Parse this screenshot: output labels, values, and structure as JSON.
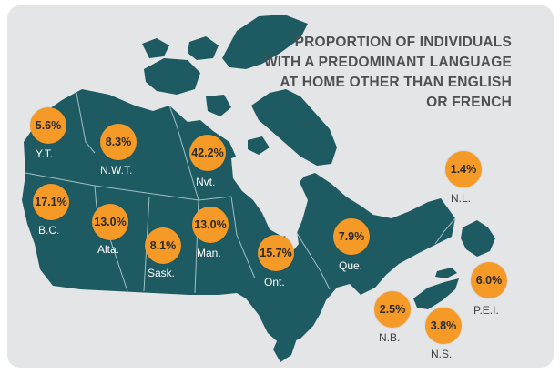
{
  "title_lines": [
    "PROPORTION OF INDIVIDUALS",
    "WITH A PREDOMINANT LANGUAGE",
    "AT HOME OTHER THAN ENGLISH",
    "OR FRENCH"
  ],
  "colors": {
    "land": "#1e5a62",
    "borders": "#9fc0c4",
    "background": "#e4e5e6",
    "bubble": "#f59a27",
    "title": "#4d4f52"
  },
  "provinces": [
    {
      "id": "yt",
      "label": "Y.T.",
      "value": "5.6%"
    },
    {
      "id": "nwt",
      "label": "N.W.T.",
      "value": "8.3%"
    },
    {
      "id": "nvt",
      "label": "Nvt.",
      "value": "42.2%"
    },
    {
      "id": "bc",
      "label": "B.C.",
      "value": "17.1%"
    },
    {
      "id": "alta",
      "label": "Alta.",
      "value": "13.0%"
    },
    {
      "id": "sask",
      "label": "Sask.",
      "value": "8.1%"
    },
    {
      "id": "man",
      "label": "Man.",
      "value": "13.0%"
    },
    {
      "id": "ont",
      "label": "Ont.",
      "value": "15.7%"
    },
    {
      "id": "que",
      "label": "Que.",
      "value": "7.9%"
    },
    {
      "id": "nl",
      "label": "N.L.",
      "value": "1.4%"
    },
    {
      "id": "pei",
      "label": "P.E.I.",
      "value": "6.0%"
    },
    {
      "id": "nb",
      "label": "N.B.",
      "value": "2.5%"
    },
    {
      "id": "ns",
      "label": "N.S.",
      "value": "3.8%"
    }
  ]
}
